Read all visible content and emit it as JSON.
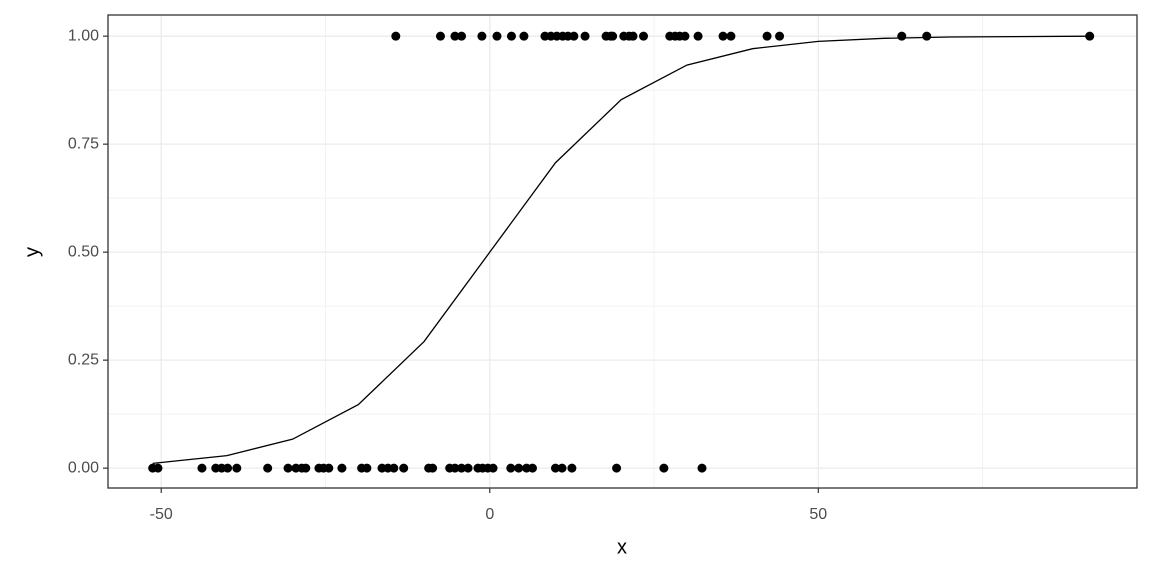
{
  "chart_data": {
    "type": "scatter",
    "xlabel": "x",
    "ylabel": "y",
    "xlim": [
      -58.1,
      98.5
    ],
    "ylim": [
      -0.046,
      1.049
    ],
    "xticks": [
      -50,
      0,
      50
    ],
    "yticks": [
      {
        "value": 0,
        "label": "0.00"
      },
      {
        "value": 0.25,
        "label": "0.25"
      },
      {
        "value": 0.5,
        "label": "0.50"
      },
      {
        "value": 0.75,
        "label": "0.75"
      },
      {
        "value": 1,
        "label": "1.00"
      }
    ],
    "xminor": [
      -25,
      25,
      75
    ],
    "yminor": [
      0.125,
      0.375,
      0.625,
      0.875
    ],
    "grid": true,
    "series": [
      {
        "type": "scatter",
        "color": "#000000",
        "x": [
          -14.3,
          -7.5,
          -5.3,
          -4.3,
          -1.2,
          1.1,
          3.3,
          5.2,
          8.4,
          9.3,
          10.2,
          11.1,
          11.9,
          12.8,
          14.5,
          17.7,
          18.4,
          18.7,
          20.4,
          21.2,
          21.8,
          23.4,
          27.4,
          28.2,
          28.9,
          29.7,
          31.7,
          35.5,
          36.7,
          42.2,
          44.1,
          62.7,
          66.5,
          91.3,
          -51.3,
          -50.5,
          -43.8,
          -41.7,
          -40.8,
          -39.9,
          -38.5,
          -33.8,
          -30.7,
          -29.5,
          -28.6,
          -28.0,
          -26.0,
          -25.3,
          -24.5,
          -22.5,
          -19.5,
          -18.7,
          -16.4,
          -15.5,
          -14.6,
          -13.1,
          -9.3,
          -8.7,
          -6.1,
          -5.3,
          -4.3,
          -3.3,
          -1.8,
          -1.1,
          -0.3,
          0.5,
          3.2,
          4.4,
          5.6,
          6.5,
          10.0,
          11.0,
          12.5,
          19.3,
          26.5,
          32.3
        ],
        "values": [
          1,
          1,
          1,
          1,
          1,
          1,
          1,
          1,
          1,
          1,
          1,
          1,
          1,
          1,
          1,
          1,
          1,
          1,
          1,
          1,
          1,
          1,
          1,
          1,
          1,
          1,
          1,
          1,
          1,
          1,
          1,
          1,
          1,
          1,
          0,
          0,
          0,
          0,
          0,
          0,
          0,
          0,
          0,
          0,
          0,
          0,
          0,
          0,
          0,
          0,
          0,
          0,
          0,
          0,
          0,
          0,
          0,
          0,
          0,
          0,
          0,
          0,
          0,
          0,
          0,
          0,
          0,
          0,
          0,
          0,
          0,
          0,
          0,
          0,
          0,
          0
        ]
      },
      {
        "type": "line",
        "color": "#000000",
        "x": [
          -51.3,
          -40,
          -30,
          -20,
          -10,
          0,
          10,
          20,
          30,
          40,
          50,
          60,
          70,
          80,
          91.3
        ],
        "values": [
          0.011,
          0.029,
          0.067,
          0.147,
          0.293,
          0.5,
          0.707,
          0.853,
          0.933,
          0.971,
          0.988,
          0.995,
          0.998,
          0.999,
          1.0
        ]
      }
    ]
  }
}
